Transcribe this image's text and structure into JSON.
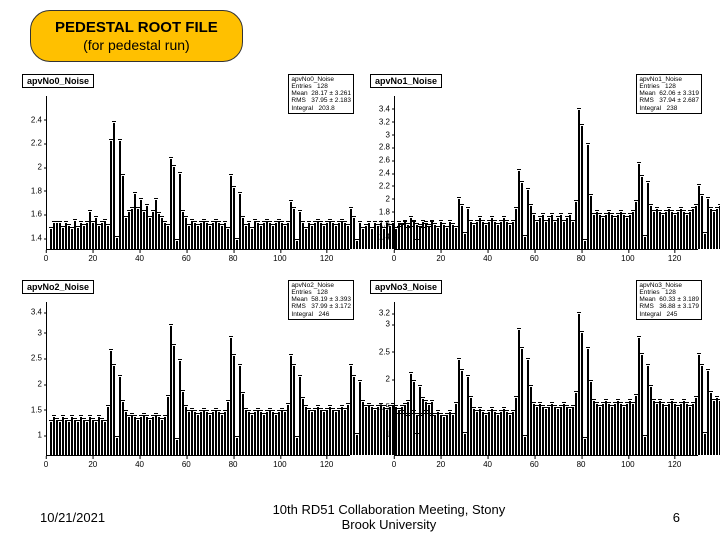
{
  "header": {
    "title": "PEDESTAL ROOT FILE",
    "subtitle": "(for pedestal run)"
  },
  "footer": {
    "date": "10/21/2021",
    "center": "10th RD51 Collaboration Meeting, Stony\nBrook University",
    "page": "6"
  },
  "chart_layout": {
    "bar_color": "#ffffff",
    "bar_border": "#000000",
    "bg": "#ffffff",
    "axis_color": "#000000",
    "title_fontsize": 9,
    "tick_fontsize": 8
  },
  "charts": [
    {
      "title": "apvNo0_Noise",
      "stats": {
        "name": "apvNo0_Noise",
        "Entries": "128",
        "Mean": "28.17 ± 3.261",
        "RMS": "37.95 ± 2.183",
        "Integral": "203.8"
      },
      "xlim": [
        0,
        130
      ],
      "xtick_step": 20,
      "ylim": [
        1.3,
        2.6
      ],
      "yticks": [
        1.4,
        1.6,
        1.8,
        2,
        2.2,
        2.4
      ],
      "values": [
        1.45,
        1.5,
        1.5,
        1.5,
        1.46,
        1.5,
        1.48,
        1.45,
        1.52,
        1.46,
        1.5,
        1.48,
        1.5,
        1.6,
        1.5,
        1.55,
        1.48,
        1.5,
        1.52,
        1.48,
        2.2,
        2.35,
        1.38,
        2.2,
        1.9,
        1.55,
        1.6,
        1.62,
        1.75,
        1.62,
        1.7,
        1.6,
        1.65,
        1.55,
        1.6,
        1.7,
        1.58,
        1.55,
        1.5,
        1.48,
        2.05,
        1.98,
        1.35,
        1.92,
        1.6,
        1.55,
        1.48,
        1.52,
        1.5,
        1.48,
        1.5,
        1.52,
        1.5,
        1.48,
        1.5,
        1.52,
        1.5,
        1.48,
        1.5,
        1.45,
        1.9,
        1.8,
        1.36,
        1.75,
        1.55,
        1.48,
        1.5,
        1.45,
        1.52,
        1.5,
        1.48,
        1.5,
        1.52,
        1.5,
        1.48,
        1.5,
        1.52,
        1.5,
        1.48,
        1.5,
        1.68,
        1.62,
        1.35,
        1.6,
        1.5,
        1.45,
        1.5,
        1.48,
        1.5,
        1.52,
        1.5,
        1.48,
        1.5,
        1.52,
        1.5,
        1.48,
        1.5,
        1.52,
        1.5,
        1.48,
        1.62,
        1.55,
        1.35,
        1.5,
        1.45,
        1.48,
        1.5,
        1.45,
        1.5,
        1.48,
        1.5,
        1.45,
        1.5,
        1.48,
        1.5,
        1.45,
        1.5,
        1.48,
        1.5,
        1.45,
        1.55,
        1.5,
        1.35,
        1.48,
        1.45,
        1.5,
        1.48,
        1.5
      ]
    },
    {
      "title": "apvNo1_Noise",
      "stats": {
        "name": "apvNo1_Noise",
        "Entries": "128",
        "Mean": "62.06 ± 3.319",
        "RMS": "37.94 ± 2.687",
        "Integral": "238"
      },
      "xlim": [
        0,
        130
      ],
      "xtick_step": 20,
      "ylim": [
        1.2,
        3.6
      ],
      "yticks": [
        1.4,
        1.6,
        1.8,
        2,
        2.2,
        2.4,
        2.6,
        2.8,
        3,
        3.2,
        3.4
      ],
      "values": [
        1.5,
        1.55,
        1.6,
        1.55,
        1.5,
        1.6,
        1.55,
        1.5,
        1.6,
        1.55,
        1.5,
        1.6,
        1.55,
        1.5,
        1.6,
        1.55,
        1.5,
        1.6,
        1.55,
        1.5,
        1.95,
        1.85,
        1.4,
        1.8,
        1.6,
        1.55,
        1.6,
        1.65,
        1.6,
        1.55,
        1.6,
        1.65,
        1.6,
        1.55,
        1.6,
        1.65,
        1.6,
        1.55,
        1.6,
        1.8,
        2.4,
        2.2,
        1.35,
        2.1,
        1.85,
        1.7,
        1.6,
        1.65,
        1.7,
        1.6,
        1.65,
        1.7,
        1.6,
        1.65,
        1.7,
        1.6,
        1.65,
        1.7,
        1.6,
        1.9,
        3.35,
        3.1,
        1.3,
        2.8,
        2.0,
        1.7,
        1.75,
        1.7,
        1.65,
        1.7,
        1.75,
        1.7,
        1.65,
        1.7,
        1.75,
        1.7,
        1.65,
        1.7,
        1.75,
        1.9,
        2.5,
        2.3,
        1.35,
        2.2,
        1.85,
        1.75,
        1.8,
        1.75,
        1.7,
        1.75,
        1.8,
        1.75,
        1.7,
        1.75,
        1.8,
        1.75,
        1.7,
        1.75,
        1.8,
        1.85,
        2.15,
        2.0,
        1.4,
        1.95,
        1.8,
        1.75,
        1.8,
        1.85,
        1.8,
        1.75,
        1.8,
        1.85,
        1.8,
        1.75,
        1.8,
        1.85,
        1.8,
        1.75,
        1.8,
        1.85,
        2.05,
        1.95,
        1.4,
        1.9,
        1.85,
        1.8,
        1.85,
        1.9
      ]
    },
    {
      "title": "apvNo2_Noise",
      "stats": {
        "name": "apvNo2_Noise",
        "Entries": "128",
        "Mean": "58.19 ± 3.393",
        "RMS": "37.99 ± 3.172",
        "Integral": "246"
      },
      "xlim": [
        0,
        130
      ],
      "xtick_step": 20,
      "ylim": [
        0.6,
        3.6
      ],
      "yticks": [
        1,
        1.5,
        2,
        2.5,
        3,
        3.4
      ],
      "values": [
        1.2,
        1.3,
        1.25,
        1.2,
        1.3,
        1.25,
        1.2,
        1.3,
        1.25,
        1.2,
        1.3,
        1.25,
        1.2,
        1.3,
        1.25,
        1.2,
        1.3,
        1.25,
        1.2,
        1.5,
        2.6,
        2.3,
        0.9,
        2.1,
        1.6,
        1.4,
        1.3,
        1.35,
        1.3,
        1.25,
        1.3,
        1.35,
        1.3,
        1.25,
        1.3,
        1.35,
        1.3,
        1.25,
        1.3,
        1.7,
        3.1,
        2.7,
        0.85,
        2.4,
        1.8,
        1.5,
        1.4,
        1.45,
        1.4,
        1.35,
        1.4,
        1.45,
        1.4,
        1.35,
        1.4,
        1.45,
        1.4,
        1.35,
        1.4,
        1.6,
        2.85,
        2.5,
        0.9,
        2.3,
        1.75,
        1.45,
        1.4,
        1.35,
        1.4,
        1.45,
        1.4,
        1.35,
        1.4,
        1.45,
        1.4,
        1.35,
        1.4,
        1.45,
        1.4,
        1.55,
        2.5,
        2.3,
        0.9,
        2.1,
        1.65,
        1.5,
        1.45,
        1.4,
        1.45,
        1.5,
        1.45,
        1.4,
        1.45,
        1.5,
        1.45,
        1.4,
        1.45,
        1.5,
        1.45,
        1.55,
        2.3,
        2.1,
        0.95,
        2.0,
        1.6,
        1.5,
        1.55,
        1.5,
        1.45,
        1.5,
        1.55,
        1.5,
        1.45,
        1.5,
        1.55,
        1.5,
        1.45,
        1.5,
        1.55,
        1.6,
        2.15,
        2.0,
        0.95,
        1.9,
        1.65,
        1.6,
        1.55,
        1.6
      ]
    },
    {
      "title": "apvNo3_Noise",
      "stats": {
        "name": "apvNo3_Noise",
        "Entries": "128",
        "Mean": "60.33 ± 3.189",
        "RMS": "36.88 ± 3.179",
        "Integral": "245"
      },
      "xlim": [
        0,
        130
      ],
      "xtick_step": 20,
      "ylim": [
        0.6,
        3.4
      ],
      "yticks": [
        1,
        1.5,
        2,
        2.5,
        3,
        3.2
      ],
      "values": [
        1.3,
        1.35,
        1.3,
        1.25,
        1.3,
        1.35,
        1.3,
        1.25,
        1.3,
        1.35,
        1.3,
        1.25,
        1.3,
        1.35,
        1.3,
        1.25,
        1.3,
        1.35,
        1.3,
        1.5,
        2.3,
        2.1,
        0.95,
        2.0,
        1.6,
        1.4,
        1.35,
        1.4,
        1.35,
        1.3,
        1.35,
        1.4,
        1.35,
        1.3,
        1.35,
        1.4,
        1.35,
        1.3,
        1.35,
        1.6,
        2.85,
        2.5,
        0.9,
        2.3,
        1.8,
        1.5,
        1.45,
        1.5,
        1.45,
        1.4,
        1.45,
        1.5,
        1.45,
        1.4,
        1.45,
        1.5,
        1.45,
        1.4,
        1.45,
        1.7,
        3.15,
        2.8,
        0.85,
        2.5,
        1.9,
        1.55,
        1.5,
        1.45,
        1.5,
        1.55,
        1.5,
        1.45,
        1.5,
        1.55,
        1.5,
        1.45,
        1.5,
        1.55,
        1.5,
        1.65,
        2.7,
        2.4,
        0.9,
        2.2,
        1.8,
        1.55,
        1.5,
        1.55,
        1.5,
        1.45,
        1.5,
        1.55,
        1.5,
        1.45,
        1.5,
        1.55,
        1.5,
        1.45,
        1.5,
        1.6,
        2.4,
        2.2,
        0.95,
        2.1,
        1.7,
        1.55,
        1.6,
        1.55,
        1.5,
        1.55,
        1.6,
        1.55,
        1.5,
        1.55,
        1.6,
        1.55,
        1.5,
        1.55,
        1.6,
        1.65,
        2.2,
        2.05,
        0.95,
        1.95,
        1.7,
        1.65,
        1.6,
        1.65
      ]
    }
  ]
}
